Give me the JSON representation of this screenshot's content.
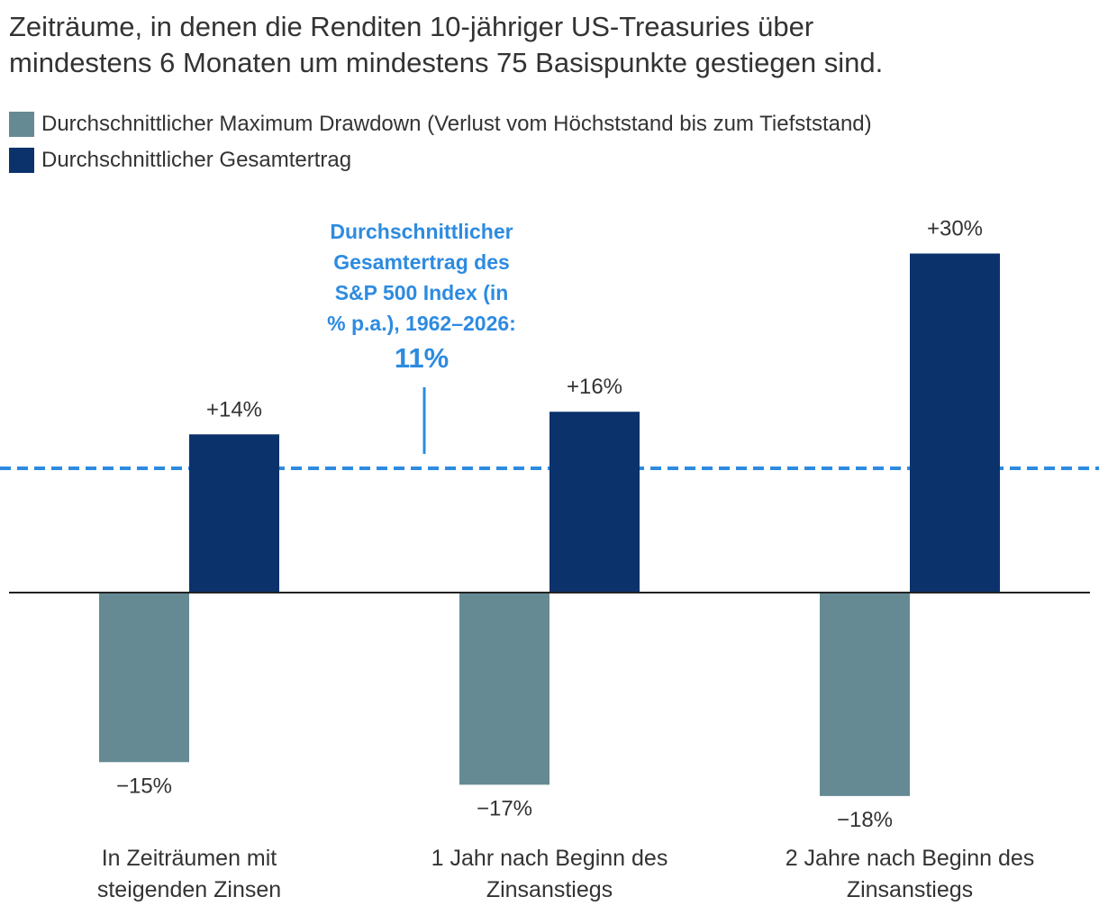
{
  "title_line1": "Zeiträume, in denen die Renditen 10-jähriger US-Treasuries über",
  "title_line2": "mindestens 6 Monaten um mindestens 75 Basispunkte gestiegen sind.",
  "colors": {
    "drawdown": "#668a94",
    "total_return": "#0b326b",
    "reference": "#2d8be0",
    "axis": "#222222",
    "text": "#333333"
  },
  "chart_data": {
    "type": "bar",
    "categories": [
      [
        "In Zeiträumen mit",
        "steigenden Zinsen"
      ],
      [
        "1 Jahr nach Beginn des",
        "Zinsanstiegs"
      ],
      [
        "2 Jahre nach Beginn des",
        "Zinsanstiegs"
      ]
    ],
    "series": [
      {
        "name": "Durchschnittlicher Maximum Drawdown (Verlust vom Höchststand bis zum Tiefststand)",
        "values": [
          -15,
          -17,
          -18
        ],
        "labels": [
          "−15%",
          "−17%",
          "−18%"
        ],
        "color": "#668a94"
      },
      {
        "name": "Durchschnittlicher Gesamtertrag",
        "values": [
          14,
          16,
          30
        ],
        "labels": [
          "+14%",
          "+16%",
          "+30%"
        ],
        "color": "#0b326b"
      }
    ],
    "reference_line": {
      "value": 11,
      "style": "dashed",
      "annotation_lines": [
        "Durchschnittlicher",
        "Gesamtertrag des",
        "S&P 500 Index (in",
        "% p.a.), 1962–2026:"
      ],
      "annotation_value": "11%"
    },
    "ylim": [
      -18,
      30
    ],
    "grid": false,
    "legend_position": "top-left"
  }
}
